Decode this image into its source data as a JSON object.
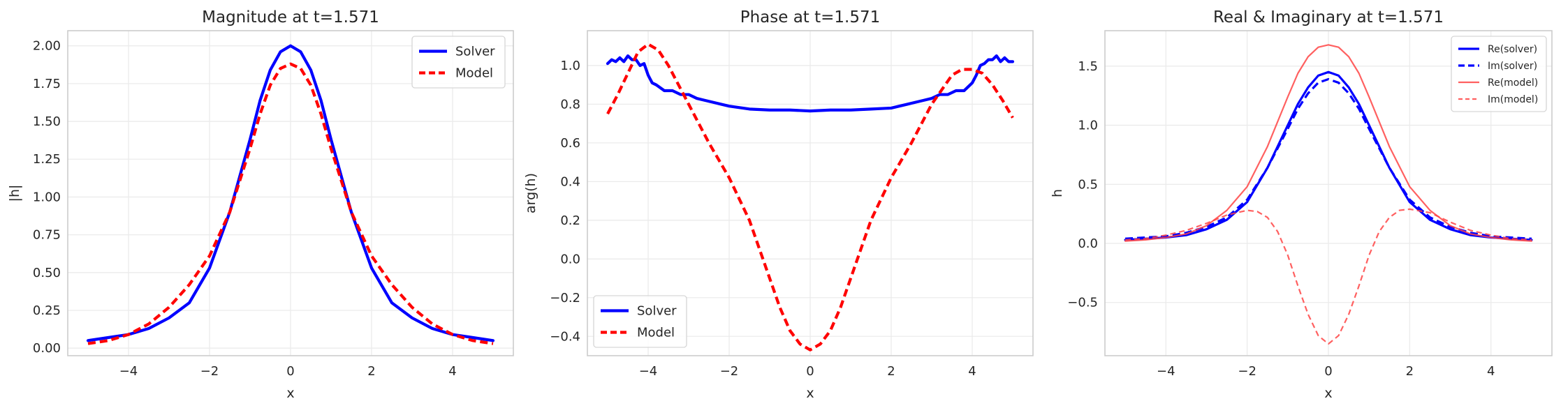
{
  "chart_data": [
    {
      "type": "line",
      "title": "Magnitude at t=1.571",
      "xlabel": "x",
      "ylabel": "|h|",
      "xlim": [
        -5.5,
        5.5
      ],
      "ylim": [
        -0.05,
        2.1
      ],
      "xticks": [
        -4,
        -2,
        0,
        2,
        4
      ],
      "yticks": [
        0.0,
        0.25,
        0.5,
        0.75,
        1.0,
        1.25,
        1.5,
        1.75,
        2.0
      ],
      "xtick_labels": [
        "−4",
        "−2",
        "0",
        "2",
        "4"
      ],
      "ytick_labels": [
        "0.00",
        "0.25",
        "0.50",
        "0.75",
        "1.00",
        "1.25",
        "1.50",
        "1.75",
        "2.00"
      ],
      "grid": true,
      "legend": "top-right",
      "series": [
        {
          "name": "Solver",
          "color": "#0000ff",
          "style": "solid",
          "width": "thick",
          "x": [
            -5.0,
            -4.5,
            -4.0,
            -3.5,
            -3.0,
            -2.5,
            -2.0,
            -1.5,
            -1.0,
            -0.75,
            -0.5,
            -0.25,
            0.0,
            0.25,
            0.5,
            0.75,
            1.0,
            1.5,
            2.0,
            2.5,
            3.0,
            3.5,
            4.0,
            4.5,
            5.0
          ],
          "y": [
            0.05,
            0.07,
            0.09,
            0.13,
            0.2,
            0.3,
            0.53,
            0.9,
            1.38,
            1.64,
            1.84,
            1.96,
            2.0,
            1.96,
            1.84,
            1.64,
            1.38,
            0.9,
            0.53,
            0.3,
            0.2,
            0.13,
            0.09,
            0.07,
            0.05
          ]
        },
        {
          "name": "Model",
          "color": "#ff0000",
          "style": "dashed",
          "width": "thick",
          "x": [
            -5.0,
            -4.5,
            -4.0,
            -3.5,
            -3.0,
            -2.5,
            -2.0,
            -1.5,
            -1.0,
            -0.75,
            -0.5,
            -0.25,
            0.0,
            0.25,
            0.5,
            0.75,
            1.0,
            1.5,
            2.0,
            2.5,
            3.0,
            3.5,
            4.0,
            4.5,
            5.0
          ],
          "y": [
            0.03,
            0.05,
            0.09,
            0.16,
            0.27,
            0.42,
            0.61,
            0.9,
            1.32,
            1.55,
            1.74,
            1.85,
            1.88,
            1.85,
            1.74,
            1.55,
            1.32,
            0.9,
            0.61,
            0.42,
            0.27,
            0.16,
            0.09,
            0.05,
            0.03
          ]
        }
      ]
    },
    {
      "type": "line",
      "title": "Phase at t=1.571",
      "xlabel": "x",
      "ylabel": "arg(h)",
      "xlim": [
        -5.5,
        5.5
      ],
      "ylim": [
        -0.5,
        1.18
      ],
      "xticks": [
        -4,
        -2,
        0,
        2,
        4
      ],
      "yticks": [
        -0.4,
        -0.2,
        0.0,
        0.2,
        0.4,
        0.6,
        0.8,
        1.0
      ],
      "xtick_labels": [
        "−4",
        "−2",
        "0",
        "2",
        "4"
      ],
      "ytick_labels": [
        "−0.4",
        "−0.2",
        "0.0",
        "0.2",
        "0.4",
        "0.6",
        "0.8",
        "1.0"
      ],
      "grid": true,
      "legend": "bottom-left",
      "series": [
        {
          "name": "Solver",
          "color": "#0000ff",
          "style": "solid",
          "width": "thick",
          "x": [
            -5.0,
            -4.9,
            -4.8,
            -4.7,
            -4.6,
            -4.5,
            -4.4,
            -4.3,
            -4.2,
            -4.1,
            -4.0,
            -3.9,
            -3.8,
            -3.6,
            -3.4,
            -3.2,
            -3.0,
            -2.8,
            -2.6,
            -2.4,
            -2.2,
            -2.0,
            -1.5,
            -1.0,
            -0.5,
            0.0,
            0.5,
            1.0,
            1.5,
            2.0,
            2.2,
            2.4,
            2.6,
            2.8,
            3.0,
            3.2,
            3.4,
            3.6,
            3.8,
            3.9,
            4.0,
            4.1,
            4.2,
            4.3,
            4.4,
            4.5,
            4.6,
            4.7,
            4.8,
            4.9,
            5.0
          ],
          "y": [
            1.01,
            1.03,
            1.02,
            1.04,
            1.02,
            1.05,
            1.03,
            1.03,
            1.0,
            1.01,
            0.95,
            0.91,
            0.9,
            0.87,
            0.87,
            0.85,
            0.85,
            0.83,
            0.82,
            0.81,
            0.8,
            0.79,
            0.775,
            0.77,
            0.77,
            0.765,
            0.77,
            0.77,
            0.775,
            0.78,
            0.79,
            0.8,
            0.81,
            0.82,
            0.83,
            0.85,
            0.85,
            0.87,
            0.87,
            0.89,
            0.91,
            0.95,
            1.0,
            1.01,
            1.03,
            1.03,
            1.05,
            1.02,
            1.04,
            1.02,
            1.02
          ]
        },
        {
          "name": "Model",
          "color": "#ff0000",
          "style": "dashed",
          "width": "thick",
          "x": [
            -5.0,
            -4.75,
            -4.5,
            -4.25,
            -4.0,
            -3.75,
            -3.5,
            -3.0,
            -2.5,
            -2.0,
            -1.5,
            -1.0,
            -0.75,
            -0.5,
            -0.25,
            0.0,
            0.25,
            0.5,
            0.75,
            1.0,
            1.5,
            2.0,
            2.5,
            3.0,
            3.5,
            3.75,
            4.0,
            4.25,
            4.5,
            4.75,
            5.0
          ],
          "y": [
            0.75,
            0.85,
            0.96,
            1.07,
            1.11,
            1.08,
            1.0,
            0.8,
            0.6,
            0.42,
            0.2,
            -0.1,
            -0.25,
            -0.37,
            -0.44,
            -0.47,
            -0.44,
            -0.37,
            -0.25,
            -0.1,
            0.2,
            0.42,
            0.6,
            0.8,
            0.95,
            0.98,
            0.98,
            0.96,
            0.9,
            0.82,
            0.73
          ]
        }
      ]
    },
    {
      "type": "line",
      "title": "Real & Imaginary at t=1.571",
      "xlabel": "x",
      "ylabel": "h",
      "xlim": [
        -5.5,
        5.5
      ],
      "ylim": [
        -0.95,
        1.8
      ],
      "xticks": [
        -4,
        -2,
        0,
        2,
        4
      ],
      "yticks": [
        -0.5,
        0.0,
        0.5,
        1.0,
        1.5
      ],
      "xtick_labels": [
        "−4",
        "−2",
        "0",
        "2",
        "4"
      ],
      "ytick_labels": [
        "−0.5",
        "0.0",
        "0.5",
        "1.0",
        "1.5"
      ],
      "grid": true,
      "legend": "top-right",
      "series": [
        {
          "name": "Re(solver)",
          "color": "#0000ff",
          "style": "solid",
          "width": "thick",
          "x": [
            -5.0,
            -4.5,
            -4.0,
            -3.5,
            -3.0,
            -2.5,
            -2.0,
            -1.5,
            -1.0,
            -0.75,
            -0.5,
            -0.25,
            0.0,
            0.25,
            0.5,
            0.75,
            1.0,
            1.5,
            2.0,
            2.5,
            3.0,
            3.5,
            4.0,
            4.5,
            5.0
          ],
          "y": [
            0.03,
            0.04,
            0.05,
            0.07,
            0.12,
            0.2,
            0.35,
            0.64,
            1.0,
            1.18,
            1.32,
            1.42,
            1.45,
            1.42,
            1.32,
            1.18,
            1.0,
            0.64,
            0.35,
            0.2,
            0.12,
            0.07,
            0.05,
            0.04,
            0.03
          ]
        },
        {
          "name": "Im(solver)",
          "color": "#0000ff",
          "style": "dashed",
          "width": "thick",
          "x": [
            -5.0,
            -4.5,
            -4.0,
            -3.5,
            -3.0,
            -2.5,
            -2.0,
            -1.5,
            -1.0,
            -0.75,
            -0.5,
            -0.25,
            0.0,
            0.25,
            0.5,
            0.75,
            1.0,
            1.5,
            2.0,
            2.5,
            3.0,
            3.5,
            4.0,
            4.5,
            5.0
          ],
          "y": [
            0.04,
            0.05,
            0.06,
            0.09,
            0.14,
            0.22,
            0.37,
            0.64,
            0.97,
            1.14,
            1.27,
            1.36,
            1.39,
            1.36,
            1.27,
            1.14,
            0.97,
            0.64,
            0.37,
            0.22,
            0.14,
            0.09,
            0.06,
            0.05,
            0.04
          ]
        },
        {
          "name": "Re(model)",
          "color": "#ff4444",
          "style": "solid",
          "width": "thin",
          "x": [
            -5.0,
            -4.5,
            -4.0,
            -3.5,
            -3.0,
            -2.5,
            -2.0,
            -1.5,
            -1.0,
            -0.75,
            -0.5,
            -0.25,
            0.0,
            0.25,
            0.5,
            0.75,
            1.0,
            1.5,
            2.0,
            2.5,
            3.0,
            3.5,
            4.0,
            4.5,
            5.0
          ],
          "y": [
            0.02,
            0.03,
            0.05,
            0.08,
            0.15,
            0.28,
            0.48,
            0.82,
            1.24,
            1.44,
            1.58,
            1.66,
            1.68,
            1.66,
            1.58,
            1.44,
            1.24,
            0.82,
            0.48,
            0.28,
            0.15,
            0.08,
            0.05,
            0.03,
            0.02
          ]
        },
        {
          "name": "Im(model)",
          "color": "#ff4444",
          "style": "dashed",
          "width": "thin",
          "x": [
            -5.0,
            -4.5,
            -4.0,
            -3.5,
            -3.0,
            -2.5,
            -2.0,
            -1.75,
            -1.5,
            -1.25,
            -1.0,
            -0.75,
            -0.5,
            -0.25,
            0.0,
            0.25,
            0.5,
            0.75,
            1.0,
            1.25,
            1.5,
            1.75,
            2.0,
            2.5,
            3.0,
            3.5,
            4.0,
            4.5,
            5.0
          ],
          "y": [
            0.03,
            0.04,
            0.07,
            0.11,
            0.17,
            0.24,
            0.28,
            0.27,
            0.22,
            0.1,
            -0.1,
            -0.36,
            -0.6,
            -0.78,
            -0.85,
            -0.78,
            -0.6,
            -0.36,
            -0.1,
            0.1,
            0.22,
            0.28,
            0.29,
            0.26,
            0.18,
            0.11,
            0.07,
            0.04,
            0.03
          ]
        }
      ]
    }
  ]
}
